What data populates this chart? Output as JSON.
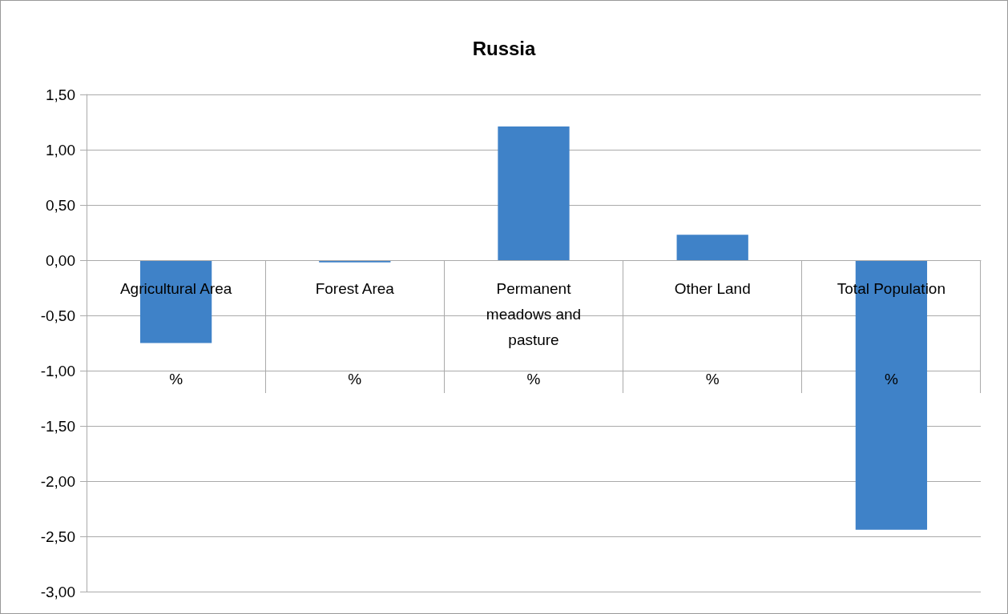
{
  "chart_data": {
    "type": "bar",
    "title": "Russia",
    "categories": [
      "Agricultural Area",
      "Forest Area",
      "Permanent meadows and pasture",
      "Other Land",
      "Total Population"
    ],
    "values": [
      -0.75,
      -0.02,
      1.21,
      0.23,
      -2.44
    ],
    "color": "#3f82c8",
    "ylim": [
      -3,
      1.5
    ],
    "yticks": [
      {
        "value": -3,
        "label": "-3,00"
      },
      {
        "value": -2.5,
        "label": "-2,50"
      },
      {
        "value": -2,
        "label": "-2,00"
      },
      {
        "value": -1.5,
        "label": "-1,50"
      },
      {
        "value": -1,
        "label": "-1,00"
      },
      {
        "value": -0.5,
        "label": "-0,50"
      },
      {
        "value": 0,
        "label": "0,00"
      },
      {
        "value": 0.5,
        "label": "0,50"
      },
      {
        "value": 1,
        "label": "1,00"
      },
      {
        "value": 1.5,
        "label": "1,50"
      }
    ],
    "annotations": [
      "%",
      "%",
      "%",
      "%",
      "%"
    ],
    "grid": "y"
  }
}
